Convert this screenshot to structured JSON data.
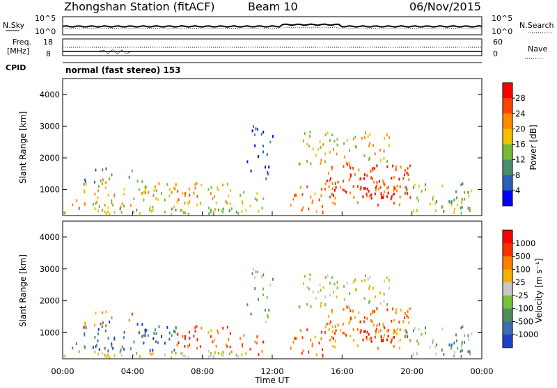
{
  "header": {
    "station": "Zhongshan Station (fitACF)",
    "beam": "Beam 10",
    "date": "06/Nov/2015"
  },
  "top_panels": {
    "nsky_label": "N.Sky",
    "nsky_ticks": [
      "10^5",
      "10^0"
    ],
    "nsearch_label": "N.Search",
    "nsearch_ticks": [
      "10^5",
      "10^0"
    ],
    "freq_label_1": "Freq.",
    "freq_label_2": "[MHz]",
    "freq_ticks": [
      "18",
      "8"
    ],
    "nave_label": "Nave",
    "nave_ticks": [
      "60",
      "0"
    ],
    "cpid_label": "CPID",
    "cpid_text": "normal (fast stereo) 153"
  },
  "chart_data": [
    {
      "type": "heatmap",
      "name": "power",
      "ylabel": "Slant Range [km]",
      "ylim": [
        180,
        4500
      ],
      "yticks": [
        "4000",
        "3000",
        "2000",
        "1000"
      ],
      "colorbar_label": "Power [dB]",
      "colorbar_ticks": [
        "28",
        "24",
        "20",
        "16",
        "12",
        "8",
        "4"
      ],
      "colors": [
        "#0000ff",
        "#2c5fb8",
        "#4a8f6a",
        "#7ab83a",
        "#f2c200",
        "#ff8a00",
        "#ff4500",
        "#ff0000"
      ]
    },
    {
      "type": "heatmap",
      "name": "velocity",
      "ylabel": "Slant Range [km]",
      "ylim": [
        180,
        4500
      ],
      "yticks": [
        "4000",
        "3000",
        "2000",
        "1000"
      ],
      "colorbar_label": "Velocity [m s⁻¹]",
      "colorbar_ticks": [
        "1000",
        "500",
        "100",
        "25",
        "-25",
        "-100",
        "-500",
        "-1000"
      ],
      "colors": [
        "#1f3fc8",
        "#3d6fb0",
        "#4d8f5a",
        "#78c23a",
        "#c8c8c8",
        "#f0b400",
        "#ff7f00",
        "#ff3000",
        "#ff0000"
      ]
    }
  ],
  "x_axis": {
    "ticks": [
      "00:00",
      "04:00",
      "08:00",
      "12:00",
      "16:00",
      "20:00",
      "00:00"
    ],
    "label": "Time UT"
  }
}
